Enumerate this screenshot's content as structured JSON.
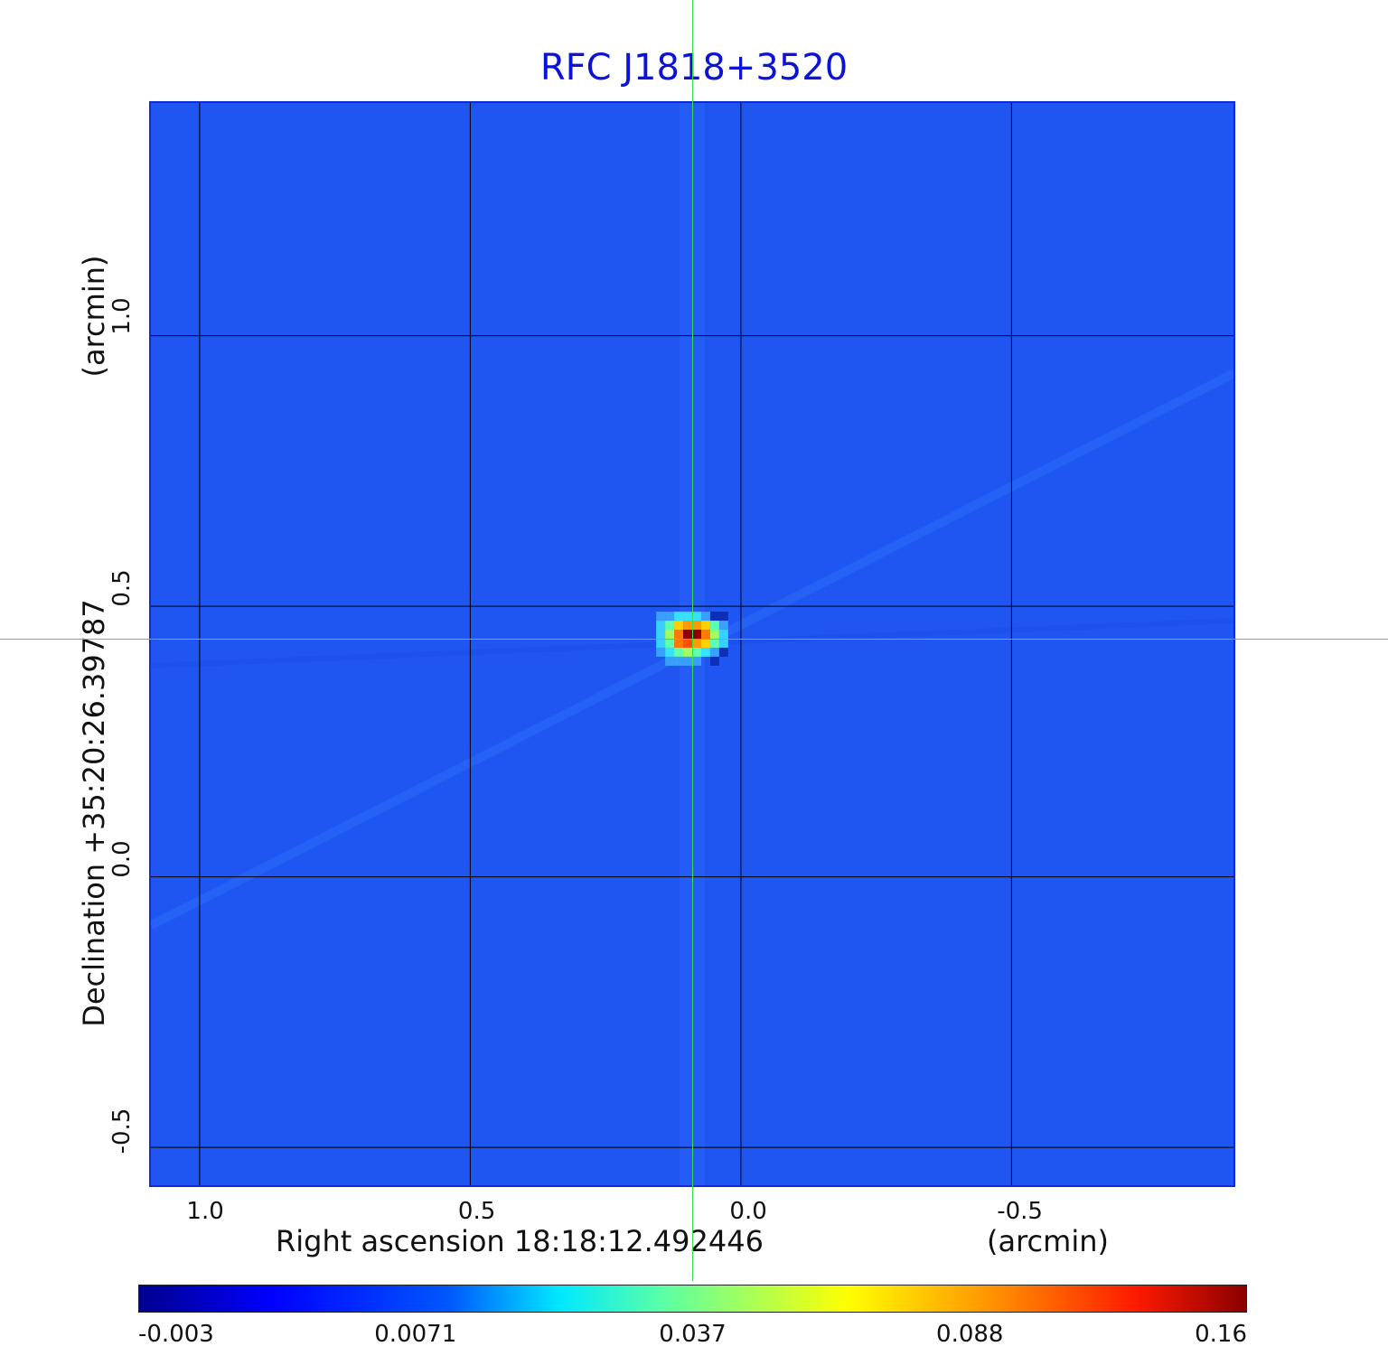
{
  "title": "RFC J1818+3520",
  "chart_data": {
    "type": "heatmap",
    "title": "RFC J1818+3520",
    "xlabel": "Right ascension  18:18:12.492446",
    "xunit": "(arcmin)",
    "ylabel": "Declination  +35:20:26.39787",
    "yunit": "(arcmin)",
    "x_ticks": [
      "1.0",
      "0.5",
      "0.0",
      "-0.5"
    ],
    "y_ticks": [
      "1.0",
      "0.5",
      "0.0",
      "-0.5"
    ],
    "x_tick_values": [
      1.0,
      0.5,
      0.0,
      -0.5
    ],
    "y_tick_values": [
      1.0,
      0.5,
      0.0,
      -0.5
    ],
    "xlim": [
      1.09,
      -0.91
    ],
    "ylim": [
      -0.57,
      1.43
    ],
    "grid": true,
    "source_peak": {
      "x": 0.09,
      "y": 0.44,
      "value": 0.16
    },
    "crosshair": {
      "x": 0.09,
      "y": 0.44
    },
    "colorbar": {
      "ticks": [
        "-0.003",
        "0.0071",
        "0.037",
        "0.088",
        "0.16"
      ],
      "min": -0.003,
      "max": 0.16,
      "colormap": "jet"
    },
    "colors": {
      "background": "#1f55f0",
      "title": "#0b14d6",
      "grid": "#000000",
      "crosshair": "#35e04a"
    }
  }
}
